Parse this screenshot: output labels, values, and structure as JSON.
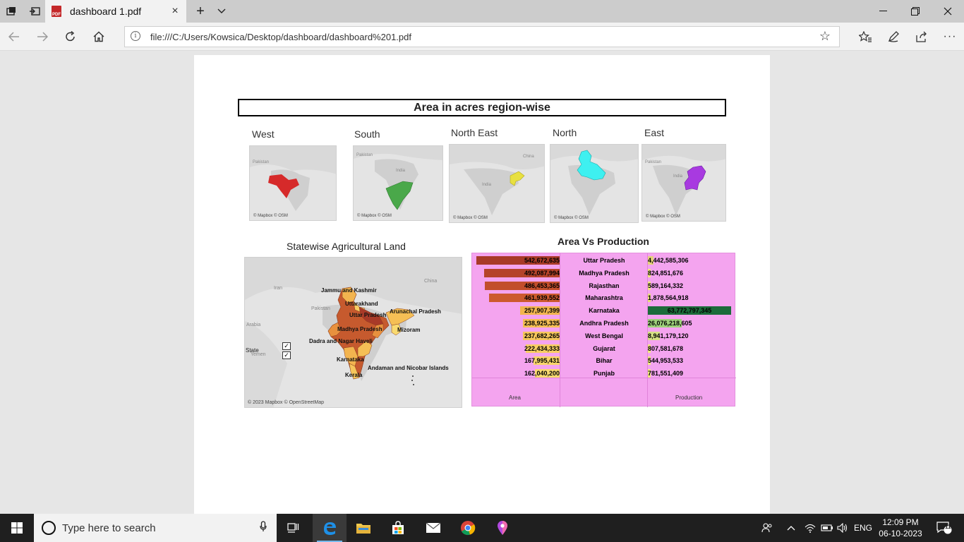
{
  "browser": {
    "tab_title": "dashboard 1.pdf",
    "pdf_badge": "PDF",
    "url": "file:///C:/Users/Kowsica/Desktop/dashboard/dashboard%201.pdf"
  },
  "dashboard": {
    "region_title": "Area in acres region-wise",
    "regions": [
      {
        "label": "West",
        "credit": "© Mapbox © OSM",
        "color": "#d62a2a"
      },
      {
        "label": "South",
        "credit": "© Mapbox © OSM",
        "color": "#4aa84a"
      },
      {
        "label": "North East",
        "credit": "© Mapbox © OSM",
        "color": "#e8e040"
      },
      {
        "label": "North",
        "credit": "© Mapbox © OSM",
        "color": "#3ef0f0"
      },
      {
        "label": "East",
        "credit": "© Mapbox © OSM",
        "color": "#a83ae0"
      }
    ],
    "map_geo_labels": {
      "pakistan": "Pakistan",
      "india": "India",
      "china": "China"
    },
    "statewise_title": "Statewise Agricultural Land",
    "big_map": {
      "geo": {
        "iran": "Iran",
        "pakistan": "Pakistan",
        "china": "China",
        "arabia": "Arabia",
        "yemen": "Yemen"
      },
      "labels": {
        "jk": "Jammu and Kashmir",
        "uk": "Uttarakhand",
        "up": "Uttar Pradesh",
        "ar": "Arunachal Pradesh",
        "mp": "Madhya Pradesh",
        "mz": "Mizoram",
        "dn": "Dadra and Nagar Haveli",
        "ka": "Karnataka",
        "an": "Andaman and Nicobar Islands",
        "kl": "Kerala"
      },
      "legend_title": "State",
      "credit": "© 2023 Mapbox © OpenStreetMap"
    },
    "avp_title": "Area Vs Production",
    "chart_data": {
      "type": "table",
      "title": "Area Vs Production",
      "columns": [
        "Area",
        "",
        "Production"
      ],
      "rows": [
        {
          "state": "Uttar Pradesh",
          "area": "542,672,635",
          "area_v": 542672635,
          "production": "4,442,585,306",
          "prod_v": 4442585306
        },
        {
          "state": "Madhya Pradesh",
          "area": "492,087,994",
          "area_v": 492087994,
          "production": "824,851,676",
          "prod_v": 824851676
        },
        {
          "state": "Rajasthan",
          "area": "486,453,365",
          "area_v": 486453365,
          "production": "589,164,332",
          "prod_v": 589164332
        },
        {
          "state": "Maharashtra",
          "area": "461,939,552",
          "area_v": 461939552,
          "production": "1,878,564,918",
          "prod_v": 1878564918
        },
        {
          "state": "Karnataka",
          "area": "257,907,399",
          "area_v": 257907399,
          "production": "63,772,797,345",
          "prod_v": 63772797345
        },
        {
          "state": "Andhra Pradesh",
          "area": "238,925,335",
          "area_v": 238925335,
          "production": "26,076,218,605",
          "prod_v": 26076218605
        },
        {
          "state": "West Bengal",
          "area": "237,682,265",
          "area_v": 237682265,
          "production": "8,941,179,120",
          "prod_v": 8941179120
        },
        {
          "state": "Gujarat",
          "area": "222,434,333",
          "area_v": 222434333,
          "production": "807,581,678",
          "prod_v": 807581678
        },
        {
          "state": "Bihar",
          "area": "167,995,431",
          "area_v": 167995431,
          "production": "544,953,533",
          "prod_v": 544953533
        },
        {
          "state": "Punjab",
          "area": "162,040,200",
          "area_v": 162040200,
          "production": "781,551,409",
          "prod_v": 781551409
        }
      ],
      "area_colors": [
        "#a83a28",
        "#b5432a",
        "#c24e2c",
        "#cc5a2e",
        "#f2b44f",
        "#f5bf55",
        "#f6c65c",
        "#f7ce63",
        "#f8d56a",
        "#f9da70"
      ],
      "prod_colors": [
        "#e6d27a",
        "#f2e880",
        "#f2e880",
        "#e9dd7a",
        "#1b6b3a",
        "#9ed17b",
        "#d6e083",
        "#f2e880",
        "#f2e880",
        "#f2e880"
      ]
    }
  },
  "taskbar": {
    "search_placeholder": "Type here to search",
    "lang": "ENG",
    "time": "12:09 PM",
    "date": "06-10-2023",
    "notif_count": "11"
  }
}
